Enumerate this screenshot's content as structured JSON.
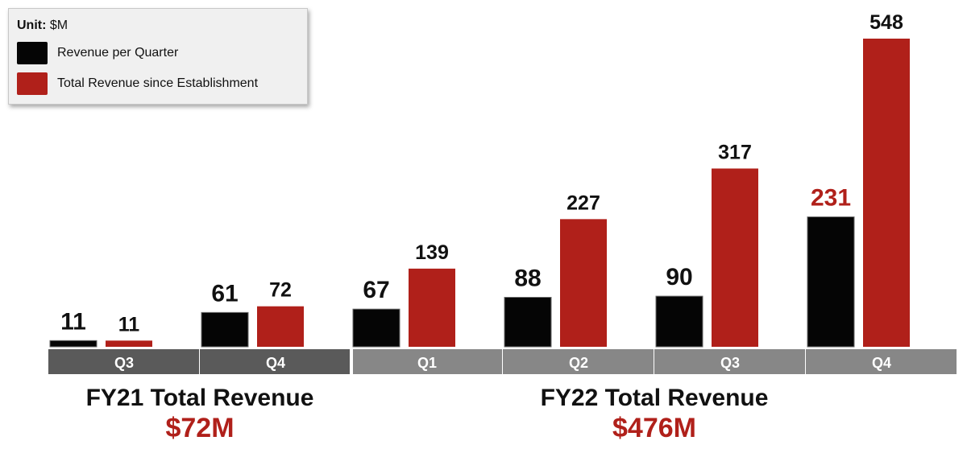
{
  "legend": {
    "unit_label": "Unit:",
    "unit_value": "$M",
    "items": [
      {
        "label": "Revenue per Quarter",
        "color": "#050505"
      },
      {
        "label": "Total Revenue since Establishment",
        "color": "#b0201a"
      }
    ]
  },
  "chart_data": {
    "type": "bar",
    "title": "",
    "unit": "$M",
    "categories": [
      "Q3",
      "Q4",
      "Q1",
      "Q2",
      "Q3",
      "Q4"
    ],
    "fiscal_years": [
      "FY21",
      "FY21",
      "FY22",
      "FY22",
      "FY22",
      "FY22"
    ],
    "series": [
      {
        "name": "Revenue per Quarter",
        "color": "#050505",
        "values": [
          11,
          61,
          67,
          88,
          90,
          231
        ]
      },
      {
        "name": "Total Revenue since Establishment",
        "color": "#b0201a",
        "values": [
          11,
          72,
          139,
          227,
          317,
          548
        ]
      }
    ],
    "data_labels": {
      "series_0": [
        "11",
        "61",
        "67",
        "88",
        "90",
        "231"
      ],
      "series_1": [
        "11",
        "72",
        "139",
        "227",
        "317",
        "548"
      ]
    },
    "ylim": [
      0,
      548
    ],
    "highlight_label_color": "#b0201a",
    "highlight_label_index": 5
  },
  "summary": {
    "fy21": {
      "title": "FY21 Total Revenue",
      "total": "$72M"
    },
    "fy22": {
      "title": "FY22 Total Revenue",
      "total": "$476M"
    }
  },
  "colors": {
    "fy21_band": "#5a5a5a",
    "fy22_band": "#878787",
    "accent_red": "#b0201a"
  }
}
